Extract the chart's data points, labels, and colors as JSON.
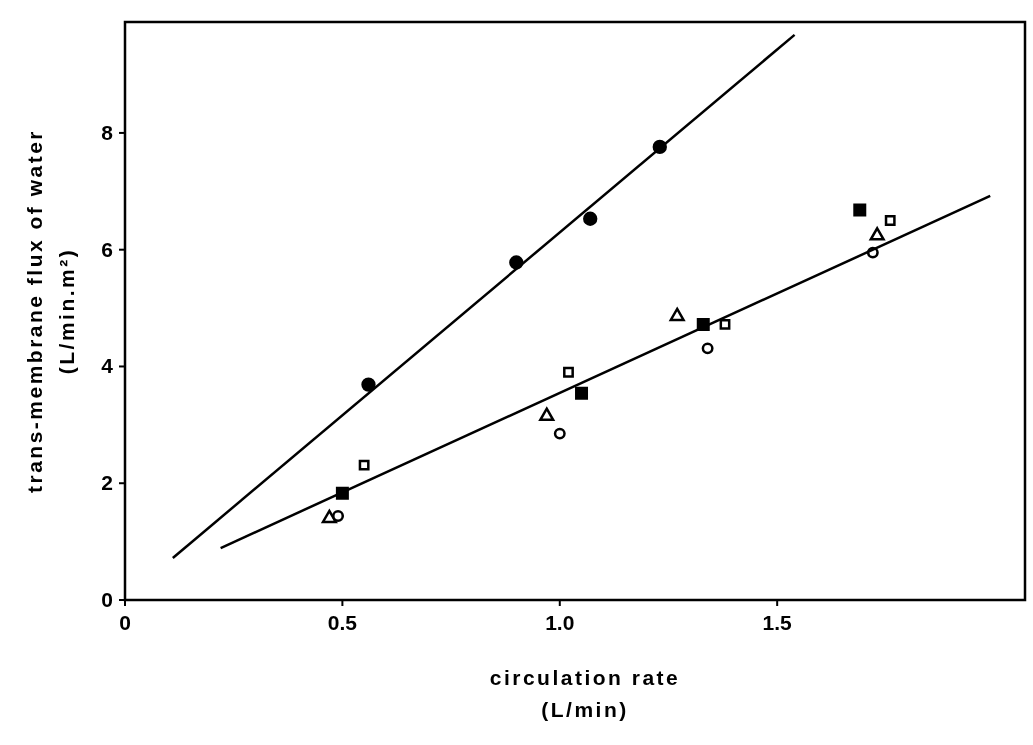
{
  "chart_data": {
    "type": "scatter",
    "xlabel": "circulation rate\n(L/min)",
    "ylabel": "trans-membrane flux of water\n(L/min.m²)",
    "xlim": [
      0,
      2.07
    ],
    "ylim": [
      0,
      9.9
    ],
    "xticks": [
      0,
      0.5,
      {
        "value": 1,
        "label": "1.0"
      },
      1.5
    ],
    "yticks": [
      0,
      2,
      4,
      6,
      8
    ],
    "series": [
      {
        "color": "#000000",
        "marker": "circle",
        "x": [
          0.56,
          0.9,
          1.07,
          1.23
        ],
        "values": [
          3.69,
          5.78,
          6.53,
          7.76
        ]
      },
      {
        "color": "#000000",
        "marker": "square",
        "x": [
          0.55,
          1.02,
          1.38,
          1.76
        ],
        "values": [
          2.31,
          3.9,
          4.72,
          6.5
        ]
      },
      {
        "color": "#000000",
        "marker": "square",
        "x": [
          0.5,
          1.05,
          1.33,
          1.69
        ],
        "values": [
          1.83,
          3.54,
          4.72,
          6.68
        ]
      },
      {
        "color": "#000000",
        "marker": "triangle",
        "x": [
          0.47,
          0.97,
          1.27,
          1.73
        ],
        "values": [
          1.4,
          3.15,
          4.86,
          6.24
        ]
      },
      {
        "color": "#000000",
        "marker": "circle",
        "x": [
          0.49,
          1.0,
          1.34,
          1.72
        ],
        "values": [
          1.44,
          2.85,
          4.31,
          5.95
        ]
      },
      {
        "type": "line",
        "color": "#000000",
        "marker": "none",
        "line_style": "solid",
        "x": [
          0.11,
          1.54
        ],
        "values": [
          0.72,
          9.68
        ]
      },
      {
        "type": "line",
        "color": "#000000",
        "marker": "none",
        "line_style": "solid",
        "x": [
          0.22,
          1.99
        ],
        "values": [
          0.89,
          6.92
        ]
      }
    ]
  }
}
